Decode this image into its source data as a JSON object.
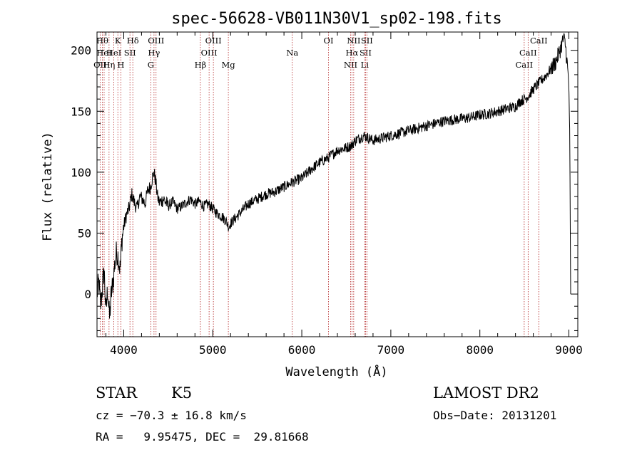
{
  "chart_data": {
    "type": "line",
    "title": "spec-56628-VB011N30V1_sp02-198.fits",
    "xlabel": "Wavelength (Å)",
    "ylabel": "Flux (relative)",
    "xlim": [
      3700,
      9100
    ],
    "ylim": [
      -35,
      215
    ],
    "xticks": [
      4000,
      5000,
      6000,
      7000,
      8000,
      9000
    ],
    "yticks": [
      0,
      50,
      100,
      150,
      200
    ],
    "grid": false,
    "series": [
      {
        "x": [
          3700,
          3720,
          3740,
          3760,
          3780,
          3800,
          3820,
          3840,
          3860,
          3880,
          3900,
          3920,
          3940,
          3960,
          3980,
          4000,
          4030,
          4060,
          4090,
          4120,
          4150,
          4180,
          4210,
          4240,
          4270,
          4300,
          4320,
          4340,
          4360,
          4380,
          4400,
          4450,
          4500,
          4550,
          4600,
          4650,
          4700,
          4750,
          4800,
          4850,
          4900,
          4950,
          5000,
          5050,
          5100,
          5150,
          5180,
          5200,
          5250,
          5300,
          5350,
          5400,
          5450,
          5500,
          5600,
          5700,
          5800,
          5900,
          6000,
          6100,
          6200,
          6300,
          6400,
          6500,
          6560,
          6600,
          6650,
          6700,
          6750,
          6800,
          6900,
          7000,
          7100,
          7200,
          7300,
          7400,
          7500,
          7600,
          7700,
          7800,
          7900,
          8000,
          8100,
          8200,
          8300,
          8400,
          8450,
          8500,
          8540,
          8600,
          8650,
          8700,
          8750,
          8800,
          8850,
          8900,
          8940,
          8960,
          8980,
          9000,
          9010,
          9015,
          9020
        ],
        "values": [
          0,
          10,
          -10,
          5,
          20,
          -15,
          5,
          -20,
          0,
          10,
          25,
          35,
          30,
          20,
          45,
          55,
          65,
          70,
          82,
          75,
          70,
          80,
          78,
          74,
          85,
          88,
          95,
          100,
          92,
          80,
          75,
          78,
          72,
          76,
          70,
          72,
          75,
          78,
          74,
          76,
          72,
          74,
          70,
          66,
          64,
          60,
          55,
          58,
          62,
          66,
          70,
          74,
          76,
          78,
          82,
          84,
          88,
          92,
          95,
          102,
          108,
          112,
          118,
          120,
          122,
          126,
          128,
          130,
          128,
          126,
          128,
          130,
          132,
          134,
          136,
          138,
          140,
          142,
          143,
          144,
          145,
          147,
          148,
          150,
          152,
          154,
          158,
          160,
          162,
          168,
          172,
          176,
          180,
          185,
          190,
          200,
          210,
          205,
          190,
          170,
          130,
          60,
          0
        ]
      }
    ],
    "spectral_lines": [
      {
        "x": 3735,
        "label": "OII",
        "row": 3
      },
      {
        "x": 3760,
        "label": "Hθ",
        "row": 1
      },
      {
        "x": 3780,
        "label": "HeI",
        "row": 2
      },
      {
        "x": 3835,
        "label": "Hη",
        "row": 3
      },
      {
        "x": 3889,
        "label": "HeI",
        "row": 2
      },
      {
        "x": 3934,
        "label": "K",
        "row": 1
      },
      {
        "x": 3968,
        "label": "H",
        "row": 3
      },
      {
        "x": 4070,
        "label": "SII",
        "row": 2
      },
      {
        "x": 4102,
        "label": "Hδ",
        "row": 1
      },
      {
        "x": 4304,
        "label": "G",
        "row": 3
      },
      {
        "x": 4340,
        "label": "Hγ",
        "row": 2
      },
      {
        "x": 4363,
        "label": "OIII",
        "row": 1
      },
      {
        "x": 4861,
        "label": "Hβ",
        "row": 3
      },
      {
        "x": 4959,
        "label": "OIII",
        "row": 2
      },
      {
        "x": 5007,
        "label": "OIII",
        "row": 1
      },
      {
        "x": 5175,
        "label": "Mg",
        "row": 3
      },
      {
        "x": 5893,
        "label": "Na",
        "row": 2
      },
      {
        "x": 6300,
        "label": "OI",
        "row": 1
      },
      {
        "x": 6548,
        "label": "NII",
        "row": 3
      },
      {
        "x": 6563,
        "label": "Hα",
        "row": 2
      },
      {
        "x": 6583,
        "label": "NII",
        "row": 1
      },
      {
        "x": 6707,
        "label": "Li",
        "row": 3
      },
      {
        "x": 6716,
        "label": "SII",
        "row": 2
      },
      {
        "x": 6731,
        "label": "SII",
        "row": 1
      },
      {
        "x": 8498,
        "label": "CaII",
        "row": 3
      },
      {
        "x": 8542,
        "label": "CaII",
        "row": 2
      },
      {
        "x": 8662,
        "label": "CaII",
        "row": 1
      }
    ]
  },
  "info": {
    "class": "STAR",
    "subclass": "K5",
    "survey": "LAMOST DR2",
    "cz": "cz = −70.3 ± 16.8 km/s",
    "obs_date": "Obs−Date: 20131201",
    "radec": "RA =   9.95475, DEC =  29.81668"
  }
}
